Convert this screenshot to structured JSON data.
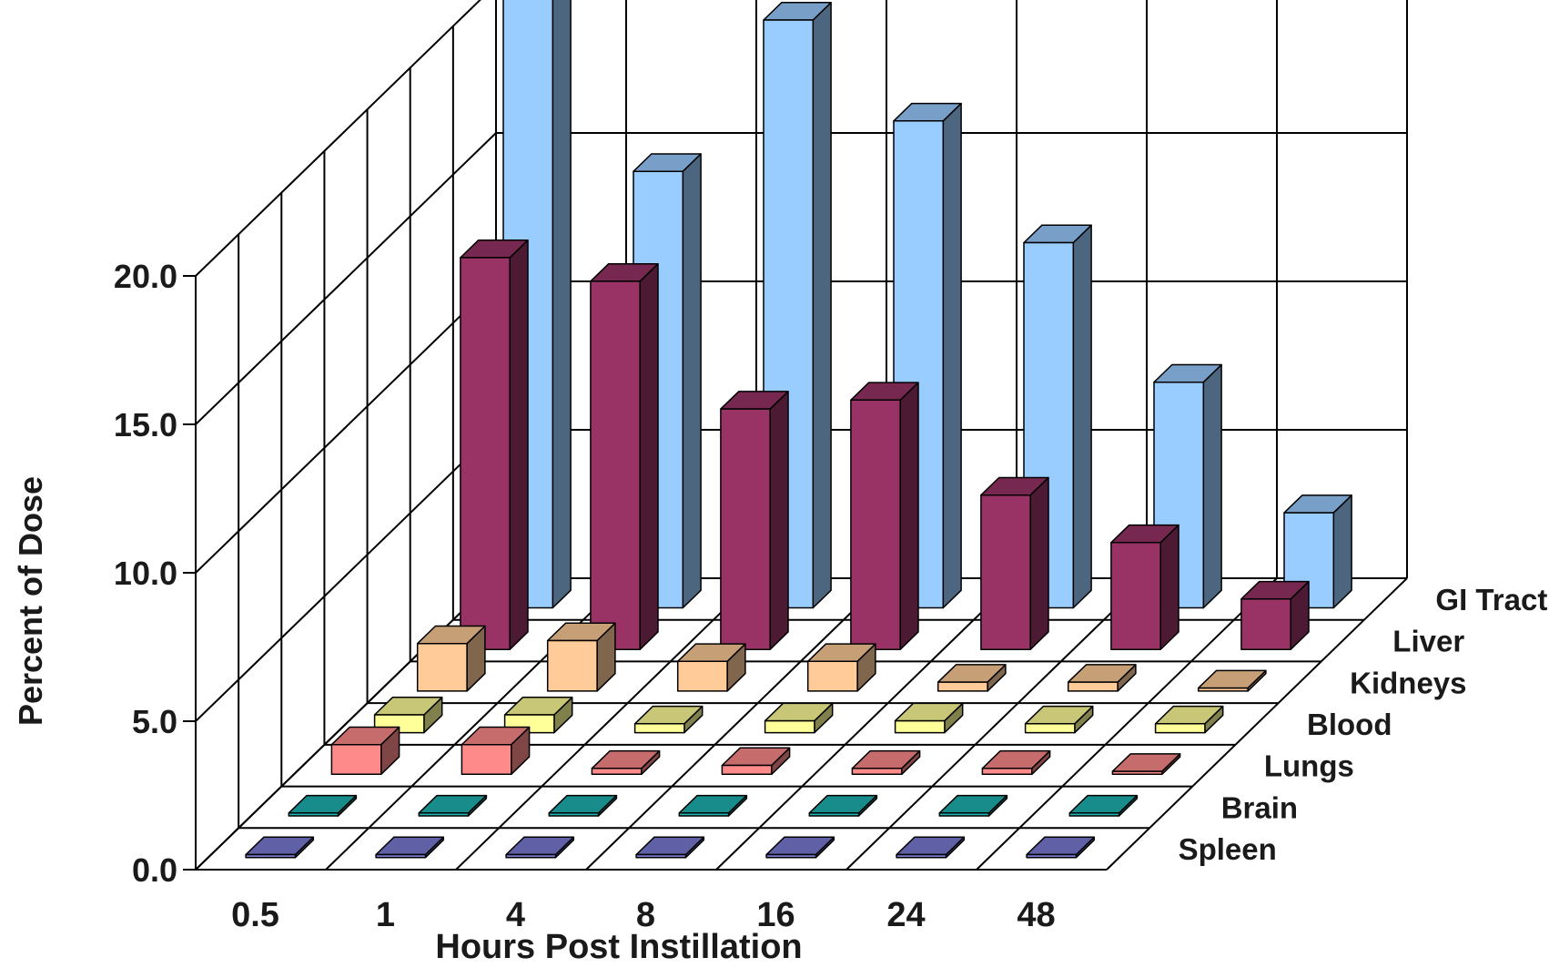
{
  "chart_data": {
    "type": "bar",
    "subtype": "3d-grouped-depth",
    "title": "",
    "xlabel": "Hours Post Instillation",
    "ylabel": "Percent of Dose",
    "categories": [
      "0.5",
      "1",
      "4",
      "8",
      "16",
      "24",
      "48"
    ],
    "ylim": [
      0,
      20
    ],
    "yticks": [
      "0.0",
      "5.0",
      "10.0",
      "15.0",
      "20.0"
    ],
    "ytick_values": [
      0,
      5,
      10,
      15,
      20
    ],
    "grid": true,
    "legend": "depth-axis-right",
    "series": [
      {
        "name": "Spleen",
        "color": "#7b7bd6",
        "values": [
          0.1,
          0.1,
          0.1,
          0.1,
          0.1,
          0.1,
          0.1
        ]
      },
      {
        "name": "Brain",
        "color": "#1fb2b2",
        "values": [
          0.1,
          0.1,
          0.1,
          0.1,
          0.1,
          0.1,
          0.1
        ]
      },
      {
        "name": "Lungs",
        "color": "#ff8a8a",
        "values": [
          1.0,
          1.0,
          0.2,
          0.3,
          0.2,
          0.2,
          0.1
        ]
      },
      {
        "name": "Blood",
        "color": "#ffff99",
        "values": [
          0.6,
          0.6,
          0.3,
          0.4,
          0.4,
          0.3,
          0.3
        ]
      },
      {
        "name": "Kidneys",
        "color": "#ffcc99",
        "values": [
          1.6,
          1.7,
          1.0,
          1.0,
          0.3,
          0.3,
          0.1
        ]
      },
      {
        "name": "Liver",
        "color": "#993366",
        "values": [
          13.2,
          12.4,
          8.1,
          8.4,
          5.2,
          3.6,
          1.7
        ]
      },
      {
        "name": "GI Tract",
        "color": "#99ccff",
        "values": [
          21.2,
          14.7,
          19.8,
          16.4,
          12.3,
          7.6,
          3.2
        ]
      }
    ]
  }
}
